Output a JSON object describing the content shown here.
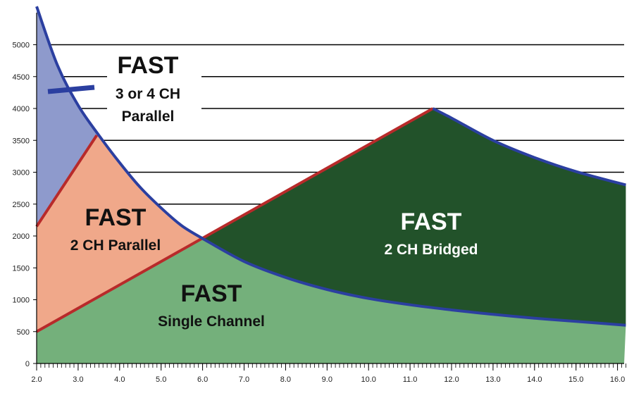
{
  "chart_data": {
    "type": "area",
    "xlim": [
      2.0,
      16.2
    ],
    "ylim": [
      0,
      5000
    ],
    "x_ticks": [
      "2.0",
      "3.0",
      "4.0",
      "5.0",
      "6.0",
      "7.0",
      "8.0",
      "9.0",
      "10.0",
      "11.0",
      "12.0",
      "13.0",
      "14.0",
      "15.0",
      "16.0"
    ],
    "y_ticks": [
      "0",
      "500",
      "1000",
      "1500",
      "2000",
      "2500",
      "3000",
      "3500",
      "4000",
      "4500",
      "5000"
    ],
    "gridlines_y": [
      2500,
      3000,
      3500,
      4000,
      4500,
      5000
    ],
    "colors": {
      "parallel_4ch": "#8e9acc",
      "parallel_2ch": "#f0a88a",
      "single": "#74b07b",
      "bridged": "#22522a",
      "curve_blue": "#2b3fa0",
      "line_red": "#b82a2a"
    },
    "curves": {
      "upper_blue": {
        "x": [
          2.0,
          2.5,
          3.0,
          3.5,
          4.0,
          4.5,
          5.0,
          5.5,
          6.0
        ],
        "y": [
          5600,
          4680,
          4050,
          3580,
          3150,
          2760,
          2440,
          2160,
          1960
        ]
      },
      "red_rising": {
        "x": [
          2.0,
          3.45
        ],
        "y": [
          2150,
          3580
        ]
      },
      "red_diagonal": {
        "x": [
          2.0,
          11.55
        ],
        "y": [
          500,
          4000
        ]
      },
      "lower_blue": {
        "x": [
          6.0,
          7.0,
          8.0,
          9.0,
          10.0,
          11.0,
          12.0,
          13.0,
          14.0,
          15.0,
          16.2
        ],
        "y": [
          1960,
          1600,
          1350,
          1160,
          1020,
          920,
          840,
          770,
          710,
          660,
          600
        ]
      },
      "upper_right_blue": {
        "x": [
          11.55,
          12.0,
          13.0,
          14.0,
          15.0,
          16.2
        ],
        "y": [
          4000,
          3850,
          3500,
          3230,
          3010,
          2800
        ]
      }
    },
    "regions": [
      {
        "id": "parallel-4ch",
        "title": "FAST",
        "subtitle": "3 or 4 CH",
        "subtitle2": "Parallel"
      },
      {
        "id": "parallel-2ch",
        "title": "FAST",
        "subtitle": "2 CH Parallel"
      },
      {
        "id": "single",
        "title": "FAST",
        "subtitle": "Single Channel"
      },
      {
        "id": "bridged",
        "title": "FAST",
        "subtitle": "2 CH Bridged"
      }
    ]
  }
}
